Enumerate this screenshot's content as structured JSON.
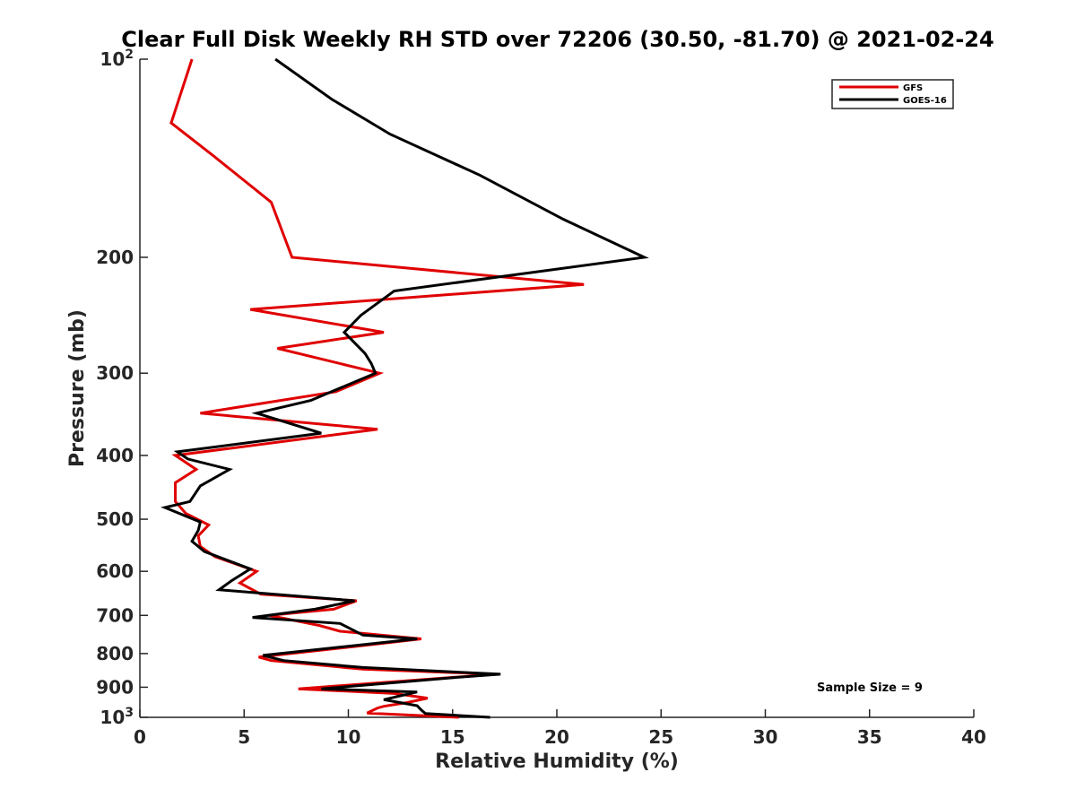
{
  "chart_data": {
    "type": "line",
    "title": "Clear Full Disk Weekly RH STD over 72206 (30.50, -81.70) @ 2021-02-24",
    "xlabel": "Relative Humidity (%)",
    "ylabel": "Pressure (mb)",
    "xlim": [
      0,
      40
    ],
    "ylim": [
      1000,
      100
    ],
    "y_scale": "log",
    "x_ticks": [
      "0",
      "5",
      "10",
      "15",
      "20",
      "25",
      "30",
      "35",
      "40"
    ],
    "y_ticks": [
      {
        "value": 100,
        "base": "10",
        "exp": "2"
      },
      {
        "value": 200,
        "label": "200"
      },
      {
        "value": 300,
        "label": "300"
      },
      {
        "value": 400,
        "label": "400"
      },
      {
        "value": 500,
        "label": "500"
      },
      {
        "value": 600,
        "label": "600"
      },
      {
        "value": 700,
        "label": "700"
      },
      {
        "value": 800,
        "label": "800"
      },
      {
        "value": 900,
        "label": "900"
      },
      {
        "value": 1000,
        "base": "10",
        "exp": "3"
      }
    ],
    "legend_position": "top-right",
    "annotation": "Sample Size = 9",
    "series": [
      {
        "name": "GFS",
        "color": "#e00000",
        "points": [
          [
            2.5,
            100
          ],
          [
            1.5,
            125
          ],
          [
            3.5,
            140
          ],
          [
            6.3,
            165
          ],
          [
            7.3,
            200
          ],
          [
            21.3,
            220
          ],
          [
            5.3,
            240
          ],
          [
            11.7,
            260
          ],
          [
            6.6,
            275
          ],
          [
            11.5,
            300
          ],
          [
            9.4,
            320
          ],
          [
            2.9,
            345
          ],
          [
            11.4,
            365
          ],
          [
            1.7,
            400
          ],
          [
            2.7,
            420
          ],
          [
            1.7,
            440
          ],
          [
            1.7,
            470
          ],
          [
            2.2,
            490
          ],
          [
            3.3,
            510
          ],
          [
            2.8,
            530
          ],
          [
            2.9,
            550
          ],
          [
            3.6,
            570
          ],
          [
            5.6,
            600
          ],
          [
            4.8,
            625
          ],
          [
            5.8,
            650
          ],
          [
            10.4,
            665
          ],
          [
            9.3,
            685
          ],
          [
            6.2,
            700
          ],
          [
            8.6,
            725
          ],
          [
            9.6,
            740
          ],
          [
            13.5,
            760
          ],
          [
            10.4,
            780
          ],
          [
            5.7,
            810
          ],
          [
            6.3,
            820
          ],
          [
            10.7,
            845
          ],
          [
            17.1,
            860
          ],
          [
            7.6,
            905
          ],
          [
            12.2,
            920
          ],
          [
            13.8,
            935
          ],
          [
            12.8,
            950
          ],
          [
            11.7,
            962
          ],
          [
            11.4,
            968
          ],
          [
            10.9,
            985
          ],
          [
            15.3,
            1000
          ]
        ]
      },
      {
        "name": "GOES-16",
        "color": "#000000",
        "points": [
          [
            6.5,
            100
          ],
          [
            9.2,
            115
          ],
          [
            12.0,
            130
          ],
          [
            16.3,
            150
          ],
          [
            20.3,
            175
          ],
          [
            24.2,
            200
          ],
          [
            12.2,
            225
          ],
          [
            10.6,
            245
          ],
          [
            9.8,
            260
          ],
          [
            10.8,
            280
          ],
          [
            11.1,
            290
          ],
          [
            11.3,
            300
          ],
          [
            8.2,
            330
          ],
          [
            5.6,
            345
          ],
          [
            8.7,
            370
          ],
          [
            1.8,
            395
          ],
          [
            2.3,
            405
          ],
          [
            4.3,
            420
          ],
          [
            2.9,
            445
          ],
          [
            2.4,
            470
          ],
          [
            1.2,
            480
          ],
          [
            2.9,
            505
          ],
          [
            2.8,
            520
          ],
          [
            2.5,
            540
          ],
          [
            3.1,
            560
          ],
          [
            5.3,
            595
          ],
          [
            4.4,
            620
          ],
          [
            3.8,
            640
          ],
          [
            10.3,
            665
          ],
          [
            8.4,
            685
          ],
          [
            5.4,
            705
          ],
          [
            9.6,
            720
          ],
          [
            10.7,
            750
          ],
          [
            13.3,
            760
          ],
          [
            5.9,
            805
          ],
          [
            6.9,
            820
          ],
          [
            10.7,
            840
          ],
          [
            17.3,
            860
          ],
          [
            15.1,
            870
          ],
          [
            8.7,
            905
          ],
          [
            13.3,
            915
          ],
          [
            11.7,
            940
          ],
          [
            12.5,
            950
          ],
          [
            13.3,
            960
          ],
          [
            13.5,
            975
          ],
          [
            13.7,
            987
          ],
          [
            16.8,
            1000
          ]
        ]
      }
    ]
  }
}
